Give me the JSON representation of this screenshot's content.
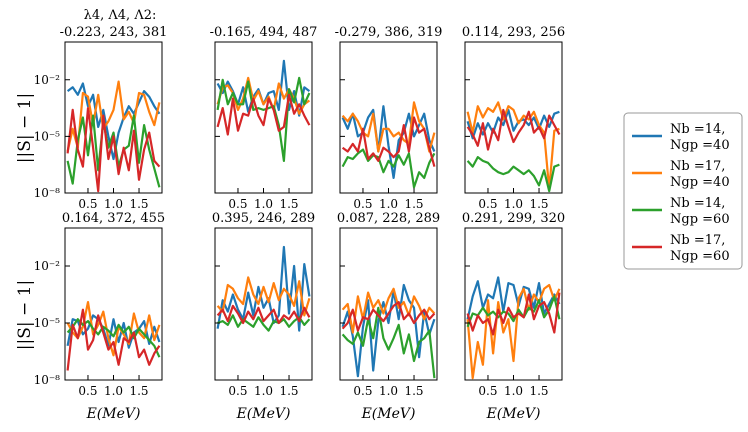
{
  "figure": {
    "ylabel": "||S| − 1|",
    "xlabel": "E(MeV)",
    "param_label": "λ4, Λ4, Λ2:",
    "yticks": [
      {
        "v": -8,
        "label": "10⁻⁸"
      },
      {
        "v": -5,
        "label": "10⁻⁵"
      },
      {
        "v": -2,
        "label": "10⁻²"
      }
    ],
    "xticks": [
      0.5,
      1.0,
      1.5
    ],
    "xtick_labels": [
      "0.5",
      "1.0",
      "1.5"
    ],
    "xlim": [
      0.05,
      1.95
    ],
    "ylim_log10": [
      -8,
      0
    ]
  },
  "legend": [
    {
      "name": "Nb=14, Ngp=40",
      "line1": "Nb =14,",
      "line2": "Ngp =40",
      "color": "#1f77b4"
    },
    {
      "name": "Nb=17, Ngp=40",
      "line1": "Nb =17,",
      "line2": "Ngp =40",
      "color": "#ff7f0e"
    },
    {
      "name": "Nb=14, Ngp=60",
      "line1": "Nb =14,",
      "line2": "Ngp =60",
      "color": "#2ca02c"
    },
    {
      "name": "Nb=17, Ngp=60",
      "line1": "Nb =17,",
      "line2": "Ngp =60",
      "color": "#d62728"
    }
  ],
  "chart_data": [
    {
      "type": "line",
      "title": "-0.223, 243, 381",
      "x": [
        0.1,
        0.2,
        0.3,
        0.4,
        0.5,
        0.6,
        0.7,
        0.8,
        0.9,
        1.0,
        1.1,
        1.2,
        1.3,
        1.4,
        1.5,
        1.6,
        1.7,
        1.8,
        1.9
      ],
      "series": [
        {
          "name": "Nb=14, Ngp=40",
          "log10_values": [
            -2.6,
            -2.4,
            -2.8,
            -2.2,
            -3.4,
            -2.8,
            -4.5,
            -3.6,
            -5.0,
            -6.2,
            -4.8,
            -4.0,
            -3.4,
            -3.8,
            -3.2,
            -2.6,
            -2.9,
            -3.4,
            -3.8
          ]
        },
        {
          "name": "Nb=17, Ngp=40",
          "log10_values": [
            -5.8,
            -4.6,
            -5.6,
            -2.7,
            -2.9,
            -4.4,
            -2.8,
            -4.6,
            -4.2,
            -3.6,
            -2.1,
            -4.1,
            -3.7,
            -4.3,
            -2.7,
            -2.8,
            -3.7,
            -4.4,
            -3.2
          ]
        },
        {
          "name": "Nb=14, Ngp=60",
          "log10_values": [
            -6.3,
            -7.5,
            -5.2,
            -4.0,
            -6.0,
            -3.9,
            -6.8,
            -4.2,
            -5.6,
            -4.8,
            -6.6,
            -5.7,
            -5.5,
            -3.9,
            -6.4,
            -4.4,
            -5.7,
            -6.7,
            -7.7
          ]
        },
        {
          "name": "Nb=17, Ngp=60",
          "log10_values": [
            -5.9,
            -3.6,
            -5.7,
            -6.6,
            -3.5,
            -5.6,
            -7.9,
            -3.9,
            -6.2,
            -5.0,
            -7.0,
            -5.6,
            -6.8,
            -4.7,
            -7.3,
            -5.7,
            -4.8,
            -6.3,
            -6.6
          ]
        }
      ]
    },
    {
      "type": "line",
      "title": "-0.165, 494, 487",
      "x": [
        0.1,
        0.2,
        0.3,
        0.4,
        0.5,
        0.6,
        0.7,
        0.8,
        0.9,
        1.0,
        1.1,
        1.2,
        1.3,
        1.4,
        1.5,
        1.6,
        1.7,
        1.8,
        1.9
      ],
      "series": [
        {
          "name": "Nb=14, Ngp=40",
          "log10_values": [
            -2.2,
            -2.7,
            -2.1,
            -2.6,
            -3.3,
            -2.4,
            -3.7,
            -2.9,
            -2.5,
            -3.3,
            -2.7,
            -2.6,
            -3.6,
            -1.0,
            -3.6,
            -2.6,
            -3.9,
            -2.4,
            -2.6
          ]
        },
        {
          "name": "Nb=17, Ngp=40",
          "log10_values": [
            -3.3,
            -2.4,
            -2.3,
            -2.7,
            -3.6,
            -3.0,
            -1.9,
            -3.1,
            -2.6,
            -3.3,
            -2.9,
            -3.6,
            -2.2,
            -3.0,
            -2.5,
            -3.0,
            -3.8,
            -3.3,
            -3.1
          ]
        },
        {
          "name": "Nb=14, Ngp=60",
          "log10_values": [
            -3.6,
            -2.0,
            -3.3,
            -2.7,
            -3.3,
            -3.3,
            -2.1,
            -3.6,
            -3.5,
            -3.6,
            -3.5,
            -3.4,
            -4.4,
            -6.3,
            -2.5,
            -3.2,
            -1.9,
            -3.3,
            -2.7
          ]
        },
        {
          "name": "Nb=17, Ngp=60",
          "log10_values": [
            -4.5,
            -3.5,
            -4.9,
            -3.0,
            -4.7,
            -3.8,
            -3.9,
            -3.0,
            -3.9,
            -4.4,
            -3.0,
            -3.6,
            -4.7,
            -4.5,
            -2.8,
            -3.8,
            -3.3,
            -3.9,
            -4.4
          ]
        }
      ]
    },
    {
      "type": "line",
      "title": "-0.279, 386, 319",
      "x": [
        0.1,
        0.2,
        0.3,
        0.4,
        0.5,
        0.6,
        0.7,
        0.8,
        0.9,
        1.0,
        1.1,
        1.2,
        1.3,
        1.4,
        1.5,
        1.6,
        1.7,
        1.8,
        1.9
      ],
      "series": [
        {
          "name": "Nb=14, Ngp=40",
          "log10_values": [
            -4.0,
            -4.6,
            -3.8,
            -5.0,
            -4.8,
            -4.0,
            -3.6,
            -5.8,
            -3.4,
            -5.5,
            -7.2,
            -5.2,
            -4.8,
            -3.8,
            -5.0,
            -4.4,
            -3.8,
            -5.2,
            -5.8
          ]
        },
        {
          "name": "Nb=17, Ngp=40",
          "log10_values": [
            -3.9,
            -4.2,
            -3.8,
            -4.2,
            -4.8,
            -5.0,
            -3.8,
            -5.8,
            -4.6,
            -4.6,
            -5.0,
            -4.8,
            -5.2,
            -5.4,
            -3.2,
            -4.2,
            -4.6,
            -5.8,
            -4.8
          ]
        },
        {
          "name": "Nb=14, Ngp=60",
          "log10_values": [
            -6.6,
            -6.1,
            -6.2,
            -5.9,
            -5.7,
            -6.3,
            -6.0,
            -6.1,
            -6.9,
            -6.3,
            -6.6,
            -6.0,
            -6.5,
            -5.9,
            -7.7,
            -6.9,
            -7.2,
            -6.4,
            -5.9
          ]
        },
        {
          "name": "Nb=17, Ngp=60",
          "log10_values": [
            -5.6,
            -5.8,
            -5.4,
            -5.8,
            -4.6,
            -6.2,
            -5.9,
            -6.3,
            -5.6,
            -5.8,
            -6.1,
            -5.8,
            -4.4,
            -5.8,
            -4.0,
            -4.8,
            -4.6,
            -5.6,
            -6.6
          ]
        }
      ]
    },
    {
      "type": "line",
      "title": "0.114, 293, 256",
      "x": [
        0.1,
        0.2,
        0.3,
        0.4,
        0.5,
        0.6,
        0.7,
        0.8,
        0.9,
        1.0,
        1.1,
        1.2,
        1.3,
        1.4,
        1.5,
        1.6,
        1.7,
        1.8,
        1.9
      ],
      "series": [
        {
          "name": "Nb=14, Ngp=40",
          "log10_values": [
            -4.2,
            -5.1,
            -4.3,
            -4.9,
            -4.3,
            -4.8,
            -4.0,
            -4.4,
            -3.6,
            -4.7,
            -4.2,
            -4.1,
            -4.4,
            -4.0,
            -4.6,
            -3.9,
            -4.5,
            -3.8,
            -3.7
          ]
        },
        {
          "name": "Nb=17, Ngp=40",
          "log10_values": [
            -3.7,
            -4.8,
            -3.4,
            -4.0,
            -3.5,
            -3.7,
            -3.2,
            -4.1,
            -3.4,
            -3.6,
            -4.3,
            -3.9,
            -4.1,
            -3.7,
            -4.4,
            -4.8,
            -7.8,
            -4.7,
            -4.6
          ]
        },
        {
          "name": "Nb=14, Ngp=60",
          "log10_values": [
            -6.3,
            -6.6,
            -6.1,
            -6.3,
            -6.4,
            -6.7,
            -6.9,
            -7.0,
            -6.9,
            -6.6,
            -6.8,
            -7.0,
            -6.8,
            -7.1,
            -7.6,
            -6.8,
            -7.9,
            -6.6,
            -6.5
          ]
        },
        {
          "name": "Nb=17, Ngp=60",
          "log10_values": [
            -4.5,
            -4.9,
            -5.5,
            -4.3,
            -5.7,
            -4.6,
            -5.2,
            -3.6,
            -4.5,
            -5.3,
            -4.8,
            -4.4,
            -3.7,
            -4.8,
            -4.5,
            -5.1,
            -3.9,
            -4.4,
            -4.9
          ]
        }
      ]
    },
    {
      "type": "line",
      "title": "0.164, 372, 455",
      "x": [
        0.1,
        0.2,
        0.3,
        0.4,
        0.5,
        0.6,
        0.7,
        0.8,
        0.9,
        1.0,
        1.1,
        1.2,
        1.3,
        1.4,
        1.5,
        1.6,
        1.7,
        1.8,
        1.9
      ],
      "series": [
        {
          "name": "Nb=14, Ngp=40",
          "log10_values": [
            -6.2,
            -4.8,
            -4.9,
            -5.6,
            -5.3,
            -4.6,
            -4.8,
            -5.3,
            -6.2,
            -4.8,
            -6.0,
            -5.0,
            -6.3,
            -5.5,
            -5.3,
            -4.9,
            -6.1,
            -5.2,
            -6.0
          ]
        },
        {
          "name": "Nb=17, Ngp=40",
          "log10_values": [
            -5.0,
            -5.5,
            -5.8,
            -5.2,
            -3.9,
            -5.6,
            -5.1,
            -4.4,
            -5.8,
            -6.7,
            -5.2,
            -5.6,
            -6.1,
            -4.5,
            -5.5,
            -5.8,
            -4.6,
            -5.9,
            -5.1
          ]
        },
        {
          "name": "Nb=14, Ngp=60",
          "log10_values": [
            -5.5,
            -5.2,
            -4.8,
            -5.1,
            -4.9,
            -5.3,
            -5.6,
            -5.2,
            -5.4,
            -5.7,
            -5.1,
            -5.5,
            -5.2,
            -5.8,
            -5.3,
            -5.6,
            -5.9,
            -6.2,
            -6.8
          ]
        },
        {
          "name": "Nb=17, Ngp=60",
          "log10_values": [
            -7.5,
            -5.1,
            -5.8,
            -4.3,
            -6.4,
            -5.9,
            -4.6,
            -5.5,
            -6.4,
            -6.0,
            -7.2,
            -5.8,
            -6.0,
            -5.5,
            -6.8,
            -6.4,
            -7.2,
            -6.6,
            -6.2
          ]
        }
      ]
    },
    {
      "type": "line",
      "title": "0.395, 246, 289",
      "x": [
        0.1,
        0.2,
        0.3,
        0.4,
        0.5,
        0.6,
        0.7,
        0.8,
        0.9,
        1.0,
        1.1,
        1.2,
        1.3,
        1.4,
        1.5,
        1.6,
        1.7,
        1.8,
        1.9
      ],
      "series": [
        {
          "name": "Nb=14, Ngp=40",
          "log10_values": [
            -5.3,
            -3.8,
            -4.4,
            -3.5,
            -4.3,
            -4.8,
            -3.4,
            -4.6,
            -3.1,
            -4.2,
            -3.7,
            -5.0,
            -4.6,
            -1.0,
            -4.5,
            -2.0,
            -5.4,
            -1.9,
            -3.6
          ]
        },
        {
          "name": "Nb=17, Ngp=40",
          "log10_values": [
            -4.1,
            -4.4,
            -3.0,
            -3.2,
            -3.7,
            -4.0,
            -2.6,
            -3.5,
            -4.0,
            -3.1,
            -3.9,
            -2.9,
            -3.8,
            -3.2,
            -3.5,
            -4.1,
            -2.8,
            -4.6,
            -3.7
          ]
        },
        {
          "name": "Nb=14, Ngp=60",
          "log10_values": [
            -5.0,
            -4.9,
            -5.1,
            -4.6,
            -5.2,
            -4.8,
            -5.0,
            -5.2,
            -4.7,
            -5.1,
            -5.4,
            -4.9,
            -5.0,
            -4.8,
            -5.2,
            -4.9,
            -4.7,
            -5.1,
            -4.8
          ]
        },
        {
          "name": "Nb=17, Ngp=60",
          "log10_values": [
            -4.6,
            -4.3,
            -4.9,
            -4.1,
            -4.5,
            -5.0,
            -4.4,
            -4.8,
            -4.2,
            -4.9,
            -4.6,
            -4.3,
            -5.0,
            -4.6,
            -4.8,
            -4.4,
            -4.9,
            -4.2,
            -4.7
          ]
        }
      ]
    },
    {
      "type": "line",
      "title": "0.087, 228, 289",
      "x": [
        0.1,
        0.2,
        0.3,
        0.4,
        0.5,
        0.6,
        0.7,
        0.8,
        0.9,
        1.0,
        1.1,
        1.2,
        1.3,
        1.4,
        1.5,
        1.6,
        1.7,
        1.8,
        1.9
      ],
      "series": [
        {
          "name": "Nb=14, Ngp=40",
          "log10_values": [
            -5.2,
            -4.4,
            -5.7,
            -7.8,
            -5.2,
            -3.8,
            -7.5,
            -4.9,
            -3.9,
            -5.0,
            -3.3,
            -4.8,
            -3.0,
            -3.8,
            -4.2,
            -6.8,
            -4.4,
            -5.6,
            -4.8
          ]
        },
        {
          "name": "Nb=17, Ngp=40",
          "log10_values": [
            -4.3,
            -4.0,
            -5.5,
            -3.6,
            -4.8,
            -3.4,
            -4.2,
            -3.8,
            -4.5,
            -3.7,
            -3.2,
            -4.2,
            -3.9,
            -4.6,
            -3.6,
            -4.1,
            -4.8,
            -4.2,
            -4.5
          ]
        },
        {
          "name": "Nb=14, Ngp=60",
          "log10_values": [
            -5.6,
            -5.9,
            -6.1,
            -5.5,
            -6.2,
            -4.8,
            -5.8,
            -4.2,
            -5.8,
            -6.4,
            -5.8,
            -5.1,
            -6.6,
            -5.6,
            -7.0,
            -6.0,
            -5.8,
            -5.4,
            -7.9
          ]
        },
        {
          "name": "Nb=17, Ngp=60",
          "log10_values": [
            -5.3,
            -5.0,
            -4.3,
            -5.4,
            -4.7,
            -4.8,
            -4.3,
            -4.6,
            -4.9,
            -4.5,
            -4.1,
            -3.9,
            -4.8,
            -4.5,
            -5.0,
            -4.6,
            -4.3,
            -4.8,
            -4.5
          ]
        }
      ]
    },
    {
      "type": "line",
      "title": "0.291, 299, 320",
      "x": [
        0.1,
        0.2,
        0.3,
        0.4,
        0.5,
        0.6,
        0.7,
        0.8,
        0.9,
        1.0,
        1.1,
        1.2,
        1.3,
        1.4,
        1.5,
        1.6,
        1.7,
        1.8,
        1.9
      ],
      "series": [
        {
          "name": "Nb=14, Ngp=40",
          "log10_values": [
            -4.8,
            -3.6,
            -2.8,
            -4.2,
            -3.5,
            -3.7,
            -2.6,
            -4.4,
            -2.9,
            -3.0,
            -4.1,
            -3.1,
            -3.2,
            -4.2,
            -2.9,
            -4.5,
            -4.0,
            -3.5,
            -4.0
          ]
        },
        {
          "name": "Nb=17, Ngp=40",
          "log10_values": [
            -4.8,
            -7.9,
            -6.0,
            -7.2,
            -3.8,
            -6.6,
            -3.9,
            -5.5,
            -4.8,
            -7.0,
            -3.7,
            -3.2,
            -4.3,
            -3.5,
            -3.9,
            -3.2,
            -3.0,
            -3.8,
            -3.2
          ]
        },
        {
          "name": "Nb=14, Ngp=60",
          "log10_values": [
            -5.2,
            -4.5,
            -4.6,
            -4.2,
            -4.6,
            -4.4,
            -4.7,
            -4.4,
            -4.5,
            -4.9,
            -4.3,
            -4.7,
            -4.2,
            -4.4,
            -3.8,
            -4.7,
            -4.3,
            -3.6,
            -4.8
          ]
        },
        {
          "name": "Nb=17, Ngp=60",
          "log10_values": [
            -4.5,
            -5.4,
            -4.6,
            -5.0,
            -4.8,
            -5.6,
            -4.3,
            -5.0,
            -4.2,
            -4.7,
            -4.5,
            -4.7,
            -3.5,
            -4.8,
            -4.1,
            -3.9,
            -4.5,
            -5.5,
            -3.4
          ]
        }
      ]
    }
  ]
}
